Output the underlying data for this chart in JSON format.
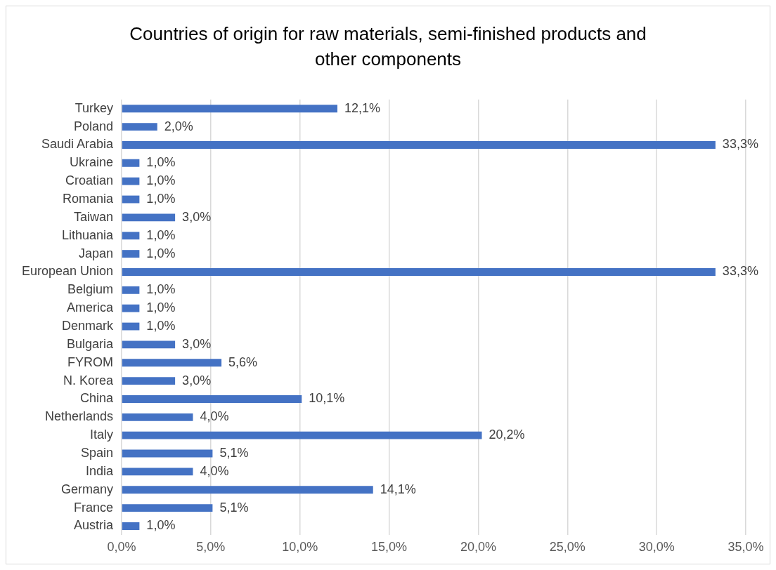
{
  "chart_data": {
    "type": "bar",
    "orientation": "horizontal",
    "title": "Countries of origin for raw materials, semi-finished products and other components",
    "categories": [
      "Turkey",
      "Poland",
      "Saudi Arabia",
      "Ukraine",
      "Croatian",
      "Romania",
      "Taiwan",
      "Lithuania",
      "Japan",
      "European Union",
      "Belgium",
      "America",
      "Denmark",
      "Bulgaria",
      "FYROM",
      "N. Korea",
      "China",
      "Netherlands",
      "Italy",
      "Spain",
      "India",
      "Germany",
      "France",
      "Austria"
    ],
    "values": [
      12.1,
      2.0,
      33.3,
      1.0,
      1.0,
      1.0,
      3.0,
      1.0,
      1.0,
      33.3,
      1.0,
      1.0,
      1.0,
      3.0,
      5.6,
      3.0,
      10.1,
      4.0,
      20.2,
      5.1,
      4.0,
      14.1,
      5.1,
      1.0
    ],
    "value_labels": [
      "12,1%",
      "2,0%",
      "33,3%",
      "1,0%",
      "1,0%",
      "1,0%",
      "3,0%",
      "1,0%",
      "1,0%",
      "33,3%",
      "1,0%",
      "1,0%",
      "1,0%",
      "3,0%",
      "5,6%",
      "3,0%",
      "10,1%",
      "4,0%",
      "20,2%",
      "5,1%",
      "4,0%",
      "14,1%",
      "5,1%",
      "1,0%"
    ],
    "color": "#4472c4",
    "xlim": [
      0,
      35
    ],
    "xticks": [
      {
        "value": 0,
        "label": "0,0%"
      },
      {
        "value": 5,
        "label": "5,0%"
      },
      {
        "value": 10,
        "label": "10,0%"
      },
      {
        "value": 15,
        "label": "15,0%"
      },
      {
        "value": 20,
        "label": "20,0%"
      },
      {
        "value": 25,
        "label": "25,0%"
      },
      {
        "value": 30,
        "label": "30,0%"
      },
      {
        "value": 35,
        "label": "35,0%"
      }
    ],
    "grid": "x",
    "legend": false
  }
}
